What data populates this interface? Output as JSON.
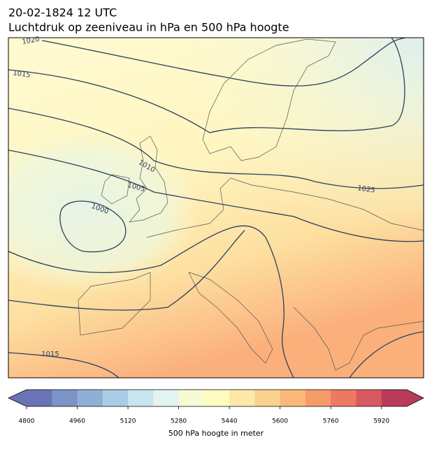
{
  "map": {
    "title": "20-02-1824 12 UTC",
    "subtitle": "Luchtdruk op zeeniveau in hPa en 500 hPa hoogte",
    "contour_labels": [
      1020,
      1015,
      1010,
      1005,
      1000,
      1025,
      1015
    ]
  },
  "colorbar": {
    "label": "500 hPa hoogte in meter",
    "lim": [
      4800,
      6000
    ],
    "ticks": [
      4800,
      4960,
      5120,
      5280,
      5440,
      5600,
      5760,
      5920
    ],
    "colors": [
      "#6a73b3",
      "#7b93c5",
      "#8fb0d5",
      "#a9cde4",
      "#c7e5ef",
      "#e3f3f1",
      "#f6fbd6",
      "#fffbc2",
      "#fee8a8",
      "#fdd28e",
      "#fbb878",
      "#f69a6a",
      "#ec7a62",
      "#d85a5e",
      "#b83c58"
    ]
  }
}
